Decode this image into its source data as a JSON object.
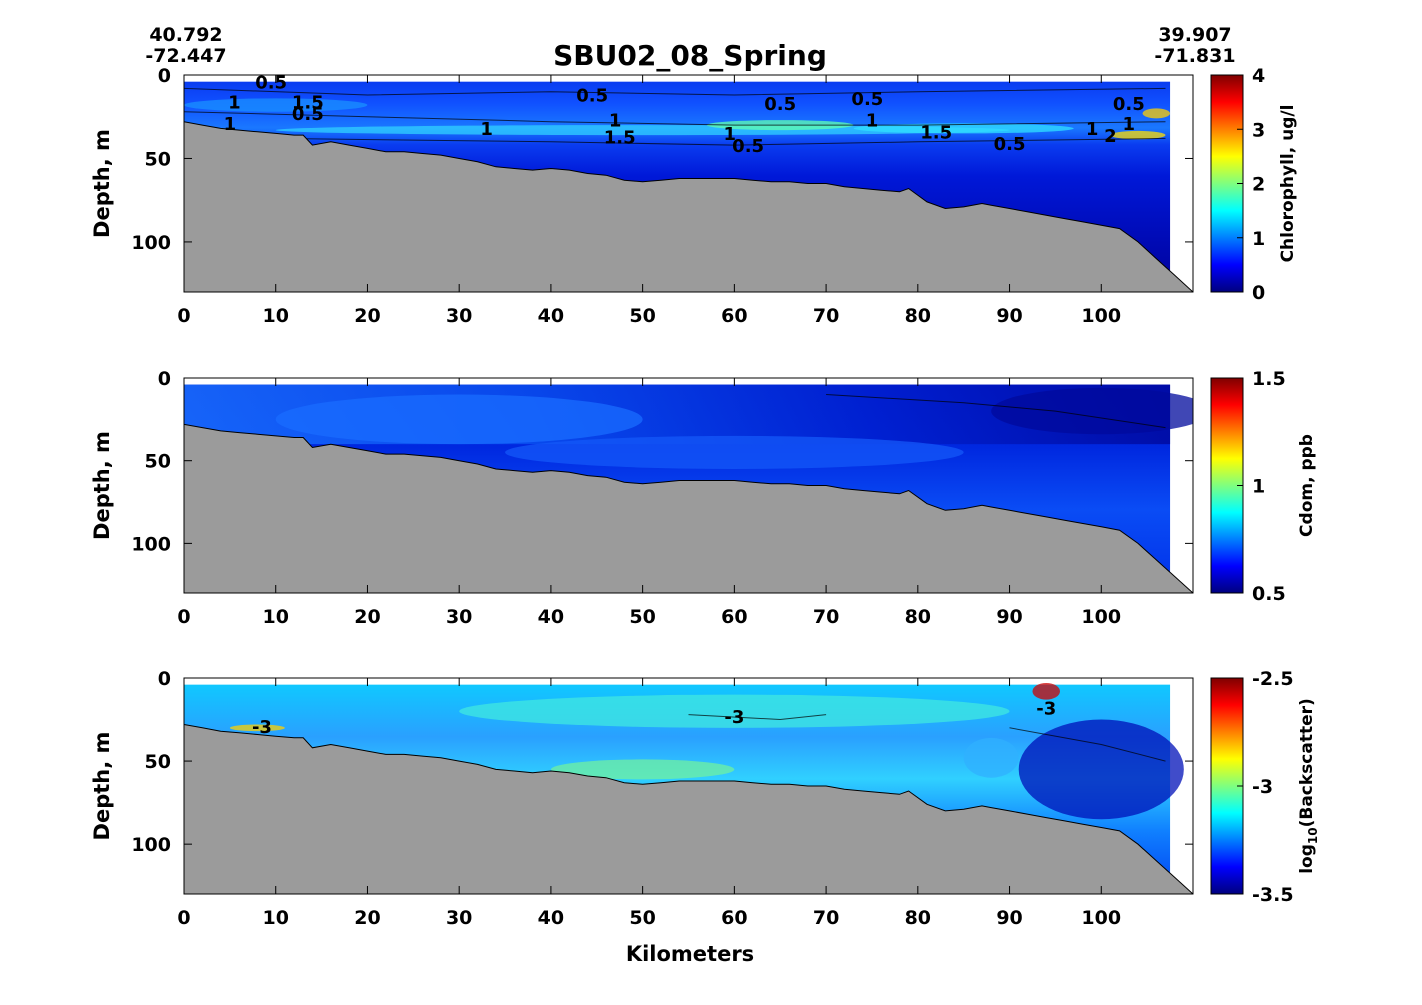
{
  "title": "SBU02_08_Spring",
  "corner_left": {
    "lat": "40.792",
    "lon": "-72.447"
  },
  "corner_right": {
    "lat": "39.907",
    "lon": "-71.831"
  },
  "chart_data": [
    {
      "type": "heatmap",
      "id": "chlorophyll",
      "ylabel": "Depth, m",
      "xlabel": "",
      "xlim": [
        0,
        110
      ],
      "ylim": [
        0,
        130
      ],
      "yreversed": true,
      "xticks": [
        "0",
        "10",
        "20",
        "30",
        "40",
        "50",
        "60",
        "70",
        "80",
        "90",
        "100"
      ],
      "yticks": [
        "0",
        "50",
        "100"
      ],
      "colorbar": {
        "label": "Chlorophyll, ug/l",
        "range": [
          0,
          4
        ],
        "ticks": [
          "0",
          "1",
          "2",
          "3",
          "4"
        ]
      },
      "contour_labels": [
        {
          "text": "0.5",
          "x": 9.5,
          "y": 5
        },
        {
          "text": "1",
          "x": 5.5,
          "y": 17
        },
        {
          "text": "1",
          "x": 5,
          "y": 30
        },
        {
          "text": "1.5",
          "x": 13.5,
          "y": 17
        },
        {
          "text": "0.5",
          "x": 13.5,
          "y": 24
        },
        {
          "text": "0.5",
          "x": 44.5,
          "y": 13
        },
        {
          "text": "1",
          "x": 33,
          "y": 33
        },
        {
          "text": "1",
          "x": 47,
          "y": 28
        },
        {
          "text": "1.5",
          "x": 47.5,
          "y": 38
        },
        {
          "text": "1",
          "x": 59.5,
          "y": 36
        },
        {
          "text": "0.5",
          "x": 61.5,
          "y": 43
        },
        {
          "text": "0.5",
          "x": 65,
          "y": 18
        },
        {
          "text": "0.5",
          "x": 74.5,
          "y": 15
        },
        {
          "text": "1",
          "x": 75,
          "y": 28
        },
        {
          "text": "1.5",
          "x": 82,
          "y": 35
        },
        {
          "text": "0.5",
          "x": 90,
          "y": 42
        },
        {
          "text": "0.5",
          "x": 103,
          "y": 18
        },
        {
          "text": "1",
          "x": 99,
          "y": 33
        },
        {
          "text": "2",
          "x": 101,
          "y": 37
        },
        {
          "text": "1",
          "x": 103,
          "y": 30
        }
      ]
    },
    {
      "type": "heatmap",
      "id": "cdom",
      "ylabel": "Depth, m",
      "xlabel": "",
      "xlim": [
        0,
        110
      ],
      "ylim": [
        0,
        130
      ],
      "yreversed": true,
      "xticks": [
        "0",
        "10",
        "20",
        "30",
        "40",
        "50",
        "60",
        "70",
        "80",
        "90",
        "100"
      ],
      "yticks": [
        "0",
        "50",
        "100"
      ],
      "colorbar": {
        "label": "Cdom, ppb",
        "range": [
          0.5,
          1.5
        ],
        "ticks": [
          "0.5",
          "1",
          "1.5"
        ]
      },
      "contour_labels": []
    },
    {
      "type": "heatmap",
      "id": "backscatter",
      "ylabel": "Depth, m",
      "xlabel": "Kilometers",
      "xlim": [
        0,
        110
      ],
      "ylim": [
        0,
        130
      ],
      "yreversed": true,
      "xticks": [
        "0",
        "10",
        "20",
        "30",
        "40",
        "50",
        "60",
        "70",
        "80",
        "90",
        "100"
      ],
      "yticks": [
        "0",
        "50",
        "100"
      ],
      "colorbar": {
        "label_main": "log",
        "label_sub": "10",
        "label_rest": "(Backscatter)",
        "range": [
          -3.5,
          -2.5
        ],
        "ticks": [
          "-3.5",
          "-3",
          "-2.5"
        ]
      },
      "contour_labels": [
        {
          "text": "-3",
          "x": 8.5,
          "y": 30
        },
        {
          "text": "-3",
          "x": 60,
          "y": 24
        },
        {
          "text": "-3",
          "x": 94,
          "y": 19
        }
      ]
    }
  ],
  "bathymetry": {
    "x": [
      0,
      2,
      4,
      6,
      8,
      10,
      12,
      13,
      14,
      16,
      18,
      20,
      22,
      24,
      26,
      28,
      30,
      32,
      34,
      36,
      38,
      40,
      42,
      44,
      46,
      48,
      50,
      52,
      54,
      56,
      58,
      60,
      62,
      64,
      66,
      68,
      70,
      72,
      74,
      76,
      78,
      79,
      81,
      83,
      85,
      87,
      88,
      90,
      92,
      94,
      96,
      98,
      100,
      102,
      104,
      106,
      108,
      110
    ],
    "depth": [
      28,
      30,
      32,
      33,
      34,
      35,
      36,
      36,
      42,
      40,
      42,
      44,
      46,
      46,
      47,
      48,
      50,
      52,
      55,
      56,
      57,
      56,
      57,
      59,
      60,
      63,
      64,
      63,
      62,
      62,
      62,
      62,
      63,
      64,
      64,
      65,
      65,
      67,
      68,
      69,
      70,
      68,
      76,
      80,
      79,
      77,
      78,
      80,
      82,
      84,
      86,
      88,
      90,
      92,
      100,
      110,
      120,
      130
    ]
  }
}
